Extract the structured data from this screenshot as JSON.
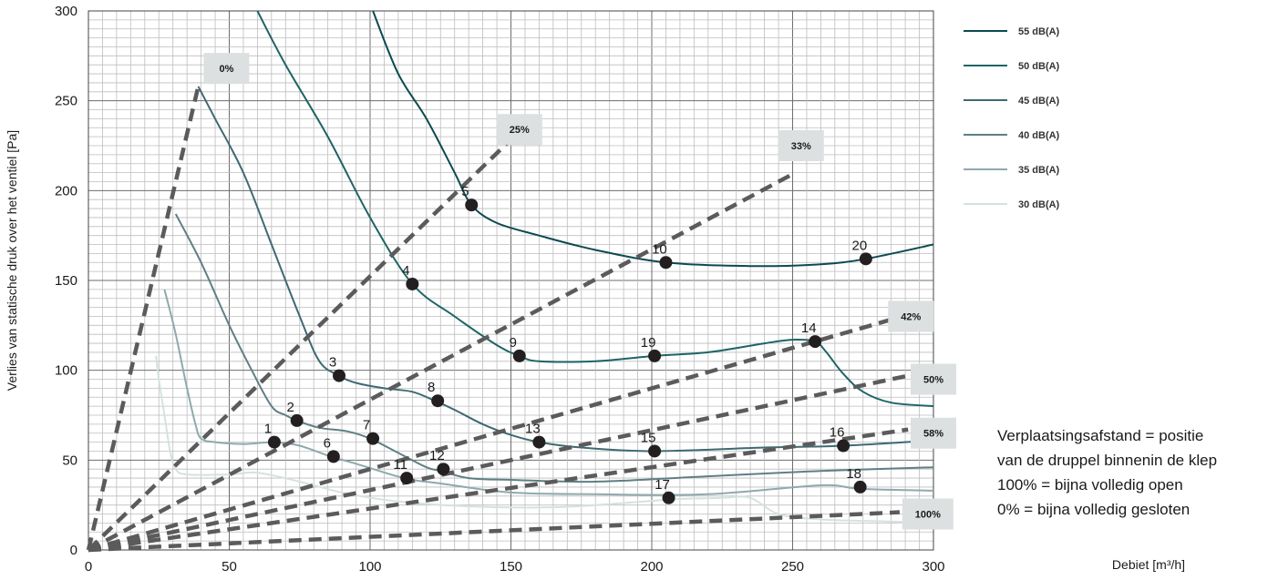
{
  "chart_data": {
    "type": "line",
    "xlabel": "Debiet [m³/h]",
    "ylabel": "Verlies van statische druk over het ventiel [Pa]",
    "xlim": [
      0,
      300
    ],
    "ylim": [
      0,
      300
    ],
    "x_ticks": [
      "0",
      "50",
      "100",
      "150",
      "200",
      "250",
      "300"
    ],
    "y_ticks": [
      "0",
      "50",
      "100",
      "150",
      "200",
      "250",
      "300"
    ],
    "grid": true,
    "legend_position": "top-right, outside plot",
    "series": [
      {
        "name": "55 dB(A)",
        "color": "#0c4a50",
        "points": [
          [
            101,
            300
          ],
          [
            110,
            265
          ],
          [
            120,
            240
          ],
          [
            130,
            210
          ],
          [
            136,
            192
          ],
          [
            145,
            182
          ],
          [
            160,
            175
          ],
          [
            180,
            167
          ],
          [
            205,
            160
          ],
          [
            235,
            158
          ],
          [
            260,
            159
          ],
          [
            276,
            162
          ],
          [
            300,
            170
          ]
        ]
      },
      {
        "name": "50 dB(A)",
        "color": "#1e6466",
        "points": [
          [
            60,
            300
          ],
          [
            70,
            270
          ],
          [
            85,
            230
          ],
          [
            100,
            185
          ],
          [
            115,
            148
          ],
          [
            130,
            130
          ],
          [
            145,
            114
          ],
          [
            153,
            108
          ],
          [
            160,
            105
          ],
          [
            180,
            105
          ],
          [
            201,
            108
          ],
          [
            220,
            110
          ],
          [
            240,
            115
          ],
          [
            250,
            117
          ],
          [
            258,
            116
          ],
          [
            262,
            110
          ],
          [
            268,
            98
          ],
          [
            275,
            88
          ],
          [
            285,
            82
          ],
          [
            300,
            80
          ]
        ]
      },
      {
        "name": "45 dB(A)",
        "color": "#3e6a72",
        "points": [
          [
            39,
            258
          ],
          [
            45,
            240
          ],
          [
            55,
            210
          ],
          [
            65,
            170
          ],
          [
            75,
            130
          ],
          [
            82,
            105
          ],
          [
            89,
            97
          ],
          [
            95,
            93
          ],
          [
            105,
            90
          ],
          [
            115,
            88
          ],
          [
            123,
            83
          ],
          [
            130,
            78
          ],
          [
            140,
            70
          ],
          [
            150,
            64
          ],
          [
            160,
            60
          ],
          [
            175,
            57
          ],
          [
            201,
            55
          ],
          [
            240,
            57
          ],
          [
            268,
            58
          ],
          [
            300,
            61
          ]
        ]
      },
      {
        "name": "40 dB(A)",
        "color": "#5f7f85",
        "points": [
          [
            31,
            187
          ],
          [
            40,
            160
          ],
          [
            50,
            125
          ],
          [
            58,
            100
          ],
          [
            65,
            80
          ],
          [
            70,
            75
          ],
          [
            74,
            72
          ],
          [
            82,
            68
          ],
          [
            92,
            66
          ],
          [
            100,
            62
          ],
          [
            110,
            54
          ],
          [
            120,
            46
          ],
          [
            125,
            44
          ],
          [
            135,
            40
          ],
          [
            150,
            39
          ],
          [
            180,
            38
          ],
          [
            220,
            41
          ],
          [
            260,
            44
          ],
          [
            300,
            46
          ]
        ]
      },
      {
        "name": "35 dB(A)",
        "color": "#8fa9ac",
        "points": [
          [
            27,
            145
          ],
          [
            31,
            120
          ],
          [
            35,
            90
          ],
          [
            38,
            70
          ],
          [
            40,
            62
          ],
          [
            45,
            60
          ],
          [
            55,
            59
          ],
          [
            66,
            60
          ],
          [
            75,
            58
          ],
          [
            86,
            52
          ],
          [
            95,
            48
          ],
          [
            112,
            40
          ],
          [
            125,
            37
          ],
          [
            150,
            32
          ],
          [
            180,
            31
          ],
          [
            220,
            31
          ],
          [
            260,
            36
          ],
          [
            274,
            34
          ],
          [
            300,
            33
          ]
        ]
      },
      {
        "name": "30 dB(A)",
        "color": "#d6e1e1",
        "points": [
          [
            24,
            108
          ],
          [
            25,
            95
          ],
          [
            27,
            75
          ],
          [
            29,
            55
          ],
          [
            31,
            45
          ],
          [
            35,
            42
          ],
          [
            50,
            42
          ],
          [
            60,
            43
          ],
          [
            75,
            38
          ],
          [
            90,
            32
          ],
          [
            110,
            27
          ],
          [
            140,
            24
          ],
          [
            170,
            24
          ],
          [
            206,
            28
          ],
          [
            225,
            29
          ],
          [
            235,
            29
          ],
          [
            245,
            20
          ],
          [
            260,
            17
          ],
          [
            280,
            16
          ],
          [
            300,
            15
          ]
        ]
      }
    ],
    "valve_positions": [
      {
        "label": "0%",
        "end": [
          39,
          258
        ],
        "box": [
          49,
          268
        ]
      },
      {
        "label": "25%",
        "end": [
          151,
          230
        ],
        "box": [
          153,
          234
        ]
      },
      {
        "label": "33%",
        "end": [
          251,
          210
        ],
        "box": [
          253,
          225
        ]
      },
      {
        "label": "42%",
        "end": [
          289,
          130
        ],
        "box": [
          292,
          130
        ]
      },
      {
        "label": "50%",
        "end": [
          291,
          97
        ],
        "box": [
          300,
          95
        ]
      },
      {
        "label": "58%",
        "end": [
          291,
          67
        ],
        "box": [
          300,
          65
        ]
      },
      {
        "label": "100%",
        "end": [
          288,
          21
        ],
        "box": [
          298,
          20
        ]
      }
    ],
    "operating_points": [
      {
        "label": "1",
        "x": 66,
        "y": 60
      },
      {
        "label": "2",
        "x": 74,
        "y": 72
      },
      {
        "label": "3",
        "x": 89,
        "y": 97
      },
      {
        "label": "4",
        "x": 115,
        "y": 148
      },
      {
        "label": "5",
        "x": 136,
        "y": 192
      },
      {
        "label": "6",
        "x": 87,
        "y": 52
      },
      {
        "label": "7",
        "x": 101,
        "y": 62
      },
      {
        "label": "8",
        "x": 124,
        "y": 83
      },
      {
        "label": "9",
        "x": 153,
        "y": 108
      },
      {
        "label": "10",
        "x": 205,
        "y": 160
      },
      {
        "label": "11",
        "x": 113,
        "y": 40
      },
      {
        "label": "12",
        "x": 126,
        "y": 45
      },
      {
        "label": "13",
        "x": 160,
        "y": 60
      },
      {
        "label": "14",
        "x": 258,
        "y": 116
      },
      {
        "label": "15",
        "x": 201,
        "y": 55
      },
      {
        "label": "16",
        "x": 268,
        "y": 58
      },
      {
        "label": "17",
        "x": 206,
        "y": 29
      },
      {
        "label": "18",
        "x": 274,
        "y": 35
      },
      {
        "label": "19",
        "x": 201,
        "y": 108
      },
      {
        "label": "20",
        "x": 276,
        "y": 162
      }
    ],
    "annotation": [
      "Verplaatsingsafstand = positie",
      "van de druppel binnenin de klep",
      "100% = bijna volledig open",
      "0% = bijna volledig gesloten"
    ]
  }
}
